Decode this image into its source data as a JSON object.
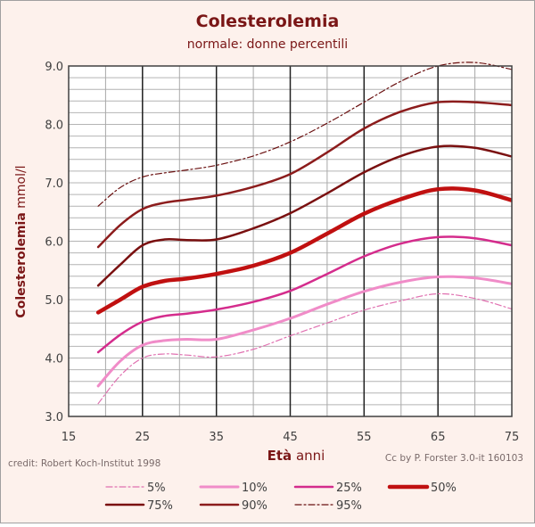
{
  "chart_data": {
    "type": "line",
    "title": "Colesterolemia",
    "subtitle": "normale:  donne percentili",
    "ylabel_bold": "Colesterolemia",
    "ylabel_unit": " mmol/l",
    "xlabel_bold": "Età",
    "xlabel_unit": " anni",
    "xlim": [
      15,
      75
    ],
    "ylim": [
      3.0,
      9.0
    ],
    "x_ticks": [
      15,
      25,
      35,
      45,
      55,
      65,
      75
    ],
    "y_ticks": [
      3.0,
      4.0,
      5.0,
      6.0,
      7.0,
      8.0,
      9.0
    ],
    "x_tick_labels": [
      "15",
      "25",
      "35",
      "45",
      "55",
      "65",
      "75"
    ],
    "y_tick_labels": [
      "3.0",
      "4.0",
      "5.0",
      "6.0",
      "7.0",
      "8.0",
      "9.0"
    ],
    "grid": true,
    "legend_position": "bottom",
    "credit_left": "credit: Robert Koch-Institut 1998",
    "credit_right": "Cc by P. Forster 3.0-it 160103",
    "series": [
      {
        "name": "5%",
        "color": "#e070b0",
        "style": "dashdot",
        "width": 1.2,
        "x": [
          19,
          22,
          25,
          28,
          31,
          35,
          40,
          45,
          50,
          55,
          60,
          65,
          70,
          75
        ],
        "y": [
          3.22,
          3.7,
          4.0,
          4.07,
          4.05,
          4.02,
          4.15,
          4.38,
          4.6,
          4.82,
          4.98,
          5.1,
          5.02,
          4.84
        ]
      },
      {
        "name": "10%",
        "color": "#f08cc8",
        "style": "solid",
        "width": 3,
        "x": [
          19,
          22,
          25,
          28,
          31,
          35,
          40,
          45,
          50,
          55,
          60,
          65,
          70,
          75
        ],
        "y": [
          3.52,
          3.95,
          4.22,
          4.3,
          4.32,
          4.32,
          4.48,
          4.68,
          4.92,
          5.14,
          5.3,
          5.39,
          5.37,
          5.27
        ]
      },
      {
        "name": "25%",
        "color": "#d42c8c",
        "style": "solid",
        "width": 2.5,
        "x": [
          19,
          22,
          25,
          28,
          31,
          35,
          40,
          45,
          50,
          55,
          60,
          65,
          70,
          75
        ],
        "y": [
          4.1,
          4.4,
          4.62,
          4.72,
          4.76,
          4.83,
          4.96,
          5.15,
          5.44,
          5.74,
          5.96,
          6.07,
          6.05,
          5.93
        ]
      },
      {
        "name": "50%",
        "color": "#c01010",
        "style": "solid",
        "width": 4.5,
        "x": [
          19,
          22,
          25,
          28,
          31,
          35,
          40,
          45,
          50,
          55,
          60,
          65,
          70,
          75
        ],
        "y": [
          4.78,
          5.0,
          5.22,
          5.32,
          5.36,
          5.44,
          5.58,
          5.8,
          6.13,
          6.47,
          6.72,
          6.89,
          6.87,
          6.7
        ]
      },
      {
        "name": "75%",
        "color": "#7a1010",
        "style": "solid",
        "width": 2.5,
        "x": [
          19,
          22,
          25,
          28,
          31,
          35,
          40,
          45,
          50,
          55,
          60,
          65,
          70,
          75
        ],
        "y": [
          5.24,
          5.6,
          5.93,
          6.03,
          6.02,
          6.03,
          6.22,
          6.48,
          6.82,
          7.18,
          7.46,
          7.62,
          7.6,
          7.45
        ]
      },
      {
        "name": "90%",
        "color": "#8c1c1c",
        "style": "solid",
        "width": 2.5,
        "x": [
          19,
          22,
          25,
          28,
          31,
          35,
          40,
          45,
          50,
          55,
          60,
          65,
          70,
          75
        ],
        "y": [
          5.9,
          6.28,
          6.55,
          6.66,
          6.71,
          6.78,
          6.93,
          7.15,
          7.52,
          7.93,
          8.22,
          8.38,
          8.38,
          8.33
        ]
      },
      {
        "name": "95%",
        "color": "#6a1010",
        "style": "dashdot",
        "width": 1.2,
        "x": [
          19,
          22,
          25,
          28,
          31,
          35,
          40,
          45,
          50,
          55,
          60,
          65,
          70,
          75
        ],
        "y": [
          6.6,
          6.92,
          7.1,
          7.17,
          7.22,
          7.3,
          7.46,
          7.7,
          8.02,
          8.38,
          8.74,
          9.0,
          9.06,
          8.94
        ]
      }
    ]
  }
}
